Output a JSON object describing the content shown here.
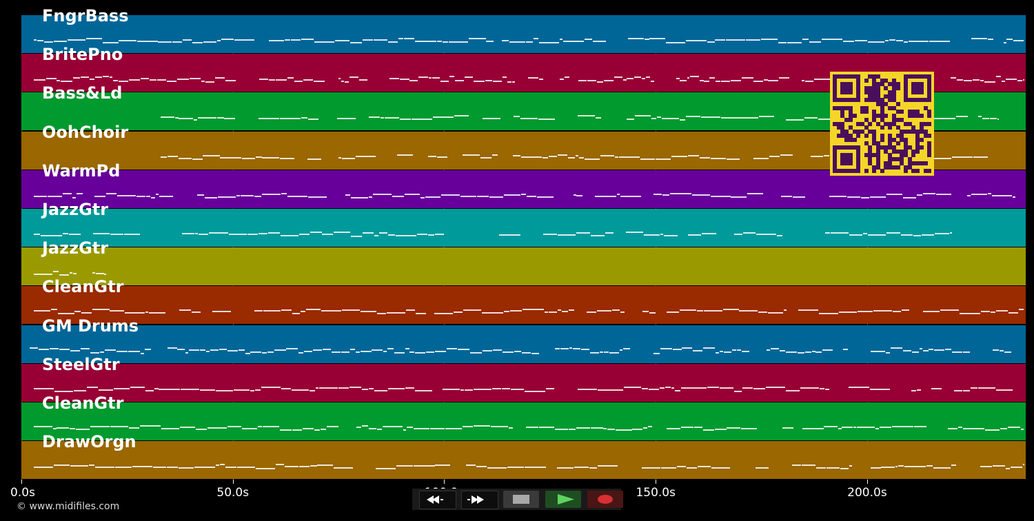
{
  "tracks": [
    {
      "name": "FngrBass",
      "color": "#006698"
    },
    {
      "name": "BritePno",
      "color": "#980035"
    },
    {
      "name": "Bass&Ld",
      "color": "#009A2E"
    },
    {
      "name": "OohChoir",
      "color": "#9A6700"
    },
    {
      "name": "WarmPd",
      "color": "#67009A"
    },
    {
      "name": "JazzGtr",
      "color": "#009A9A"
    },
    {
      "name": "JazzGtr",
      "color": "#9A9A00"
    },
    {
      "name": "CleanGtr",
      "color": "#9A2A00"
    },
    {
      "name": "GM Drums",
      "color": "#006698"
    },
    {
      "name": "SteelGtr",
      "color": "#980035"
    },
    {
      "name": "CleanGtr",
      "color": "#009A2E"
    },
    {
      "name": "DrawOrgn",
      "color": "#9A6700"
    }
  ],
  "time_axis": {
    "unit": "s",
    "range": [
      0,
      237.5
    ],
    "ticks": [
      "0.0s",
      "50.0s",
      "100.0s",
      "150.0s",
      "200.0s"
    ],
    "tick_values": [
      0,
      50,
      100,
      150,
      200
    ]
  },
  "copyright": "© www.midifiles.com",
  "transport": {
    "buttons": [
      {
        "name": "rewind",
        "icon": "rewind-icon"
      },
      {
        "name": "fast-forward",
        "icon": "fast-forward-icon"
      },
      {
        "name": "stop",
        "icon": "stop-icon"
      },
      {
        "name": "play",
        "icon": "play-icon"
      },
      {
        "name": "record",
        "icon": "record-icon"
      }
    ]
  },
  "qr_code": {
    "icon": "qr-code-icon",
    "background": "#F5D628",
    "foreground": "#4A0F5A"
  },
  "colors": {
    "background": "#000000",
    "note": "#FFFFFF"
  }
}
